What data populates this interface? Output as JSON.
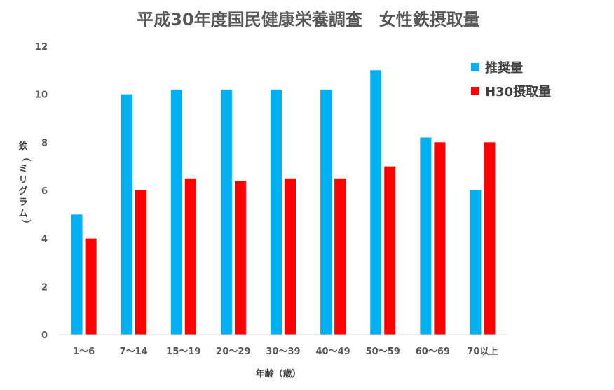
{
  "chart_data": {
    "type": "bar",
    "title": "平成30年度国民健康栄養調査　女性鉄摂取量",
    "xlabel": "年齢（歳）",
    "ylabel": "鉄（ミリグラム）",
    "ylim": [
      0,
      12
    ],
    "yticks": [
      0,
      2,
      4,
      6,
      8,
      10,
      12
    ],
    "grid": false,
    "legend_position": "top-right",
    "categories": [
      "1～6",
      "7～14",
      "15～19",
      "20～29",
      "30～39",
      "40～49",
      "50～59",
      "60～69",
      "70以上"
    ],
    "series": [
      {
        "name": "推奨量",
        "color": "#00b0f0",
        "values": [
          5,
          10,
          10.2,
          10.2,
          10.2,
          10.2,
          11,
          8.2,
          6
        ]
      },
      {
        "name": "H30摂取量",
        "color": "#ff0000",
        "values": [
          4,
          6,
          6.5,
          6.4,
          6.5,
          6.5,
          7,
          8,
          8
        ]
      }
    ]
  }
}
